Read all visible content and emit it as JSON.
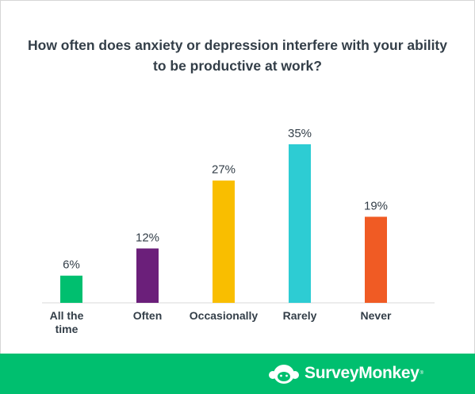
{
  "chart_data": {
    "type": "bar",
    "title_lines": [
      "How often does anxiety or depression interfere with your ability",
      "to be productive at work?"
    ],
    "categories": [
      "All the time",
      "Often",
      "Occasionally",
      "Rarely",
      "Never"
    ],
    "category_label_lines": [
      [
        "All the",
        "time"
      ],
      [
        "Often"
      ],
      [
        "Occasionally"
      ],
      [
        "Rarely"
      ],
      [
        "Never"
      ]
    ],
    "values": [
      6,
      12,
      27,
      35,
      19
    ],
    "value_labels": [
      "6%",
      "12%",
      "27%",
      "35%",
      "19%"
    ],
    "colors": [
      "#00bf6f",
      "#6b1f7a",
      "#f9be00",
      "#2dccd3",
      "#f05b24"
    ],
    "ylim": [
      0,
      35
    ],
    "xlabel": "",
    "ylabel": "",
    "grid": false,
    "legend": "none"
  },
  "footer": {
    "brand": "SurveyMonkey",
    "brand_mark": "®",
    "logo_icon": "surveymonkey-logo-icon",
    "background": "#00bf6f"
  }
}
